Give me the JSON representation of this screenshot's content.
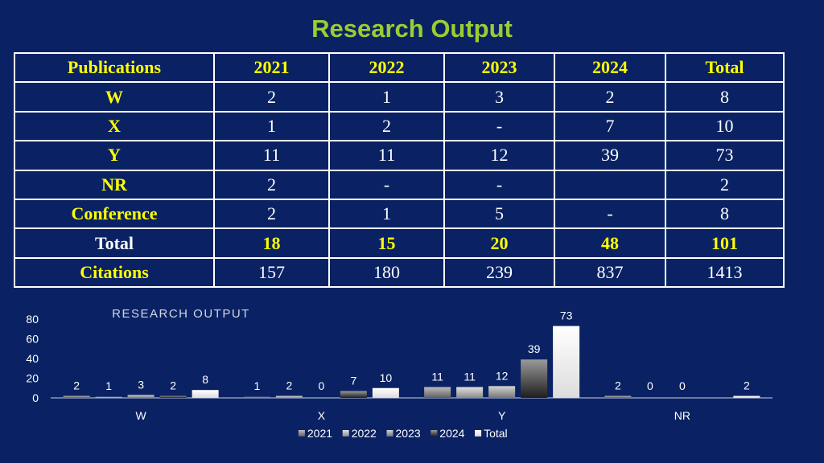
{
  "title": "Research Output",
  "table": {
    "headers": [
      "Publications",
      "2021",
      "2022",
      "2023",
      "2024",
      "Total"
    ],
    "rows": [
      {
        "label": "W",
        "cells": [
          "2",
          "1",
          "3",
          "2",
          "8"
        ]
      },
      {
        "label": "X",
        "cells": [
          "1",
          "2",
          "-",
          "7",
          "10"
        ]
      },
      {
        "label": "Y",
        "cells": [
          "11",
          "11",
          "12",
          "39",
          "73"
        ]
      },
      {
        "label": "NR",
        "cells": [
          "2",
          "-",
          "-",
          "",
          "2"
        ]
      },
      {
        "label": "Conference",
        "cells": [
          "2",
          "1",
          "5",
          "-",
          "8"
        ]
      },
      {
        "label": "Total",
        "cells": [
          "18",
          "15",
          "20",
          "48",
          "101"
        ]
      },
      {
        "label": "Citations",
        "cells": [
          "157",
          "180",
          "239",
          "837",
          "1413"
        ]
      }
    ]
  },
  "chart_data": {
    "type": "bar",
    "title": "RESEARCH OUTPUT",
    "categories": [
      "W",
      "X",
      "Y",
      "NR"
    ],
    "series": [
      {
        "name": "2021",
        "values": [
          2,
          1,
          11,
          2
        ]
      },
      {
        "name": "2022",
        "values": [
          1,
          2,
          11,
          0
        ]
      },
      {
        "name": "2023",
        "values": [
          3,
          0,
          12,
          0
        ]
      },
      {
        "name": "2024",
        "values": [
          2,
          7,
          39,
          null
        ]
      },
      {
        "name": "Total",
        "values": [
          8,
          10,
          73,
          2
        ]
      }
    ],
    "ylim": [
      0,
      80
    ],
    "yticks": [
      "0",
      "20",
      "40",
      "60",
      "80"
    ],
    "data_labels": [
      [
        "2",
        "1",
        "3",
        "2",
        "8"
      ],
      [
        "1",
        "2",
        "0",
        "7",
        "10"
      ],
      [
        "11",
        "11",
        "12",
        "39",
        "73"
      ],
      [
        "2",
        "0",
        "0",
        "",
        "2"
      ]
    ],
    "grid": false,
    "legend_position": "bottom",
    "colors": {
      "background": "#0a2263",
      "axis": "#c8d0e0",
      "label": "#ffffff",
      "title": "#d0d6e6",
      "series": [
        "#9a9a9a",
        "#c4c4c4",
        "#b0b0b0",
        "#6e6e6e",
        "#f4f4f4"
      ]
    }
  }
}
